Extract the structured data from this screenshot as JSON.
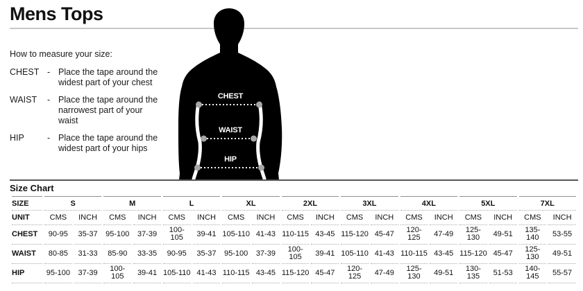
{
  "page": {
    "title": "Mens Tops"
  },
  "instructions": {
    "heading": "How to measure your size:",
    "items": [
      {
        "term": "CHEST",
        "separator": "-",
        "description": "Place the tape around the widest part of your chest"
      },
      {
        "term": "WAIST",
        "separator": "-",
        "description": "Place the tape around the narrowest part of your waist"
      },
      {
        "term": "HIP",
        "separator": "-",
        "description": "Place the tape around the widest part of your hips"
      }
    ]
  },
  "figure": {
    "silhouette_color": "#000000",
    "marker_dot_color": "#a6a6a6",
    "markers": [
      {
        "label": "CHEST"
      },
      {
        "label": "WAIST"
      },
      {
        "label": "HIP"
      }
    ]
  },
  "size_chart": {
    "heading": "Size Chart",
    "size_column_header": "SIZE",
    "unit_row_header": "UNIT",
    "sizes": [
      "S",
      "M",
      "L",
      "XL",
      "2XL",
      "3XL",
      "4XL",
      "5XL",
      "7XL"
    ],
    "units": [
      "CMS",
      "INCH"
    ],
    "rows": [
      {
        "label": "CHEST",
        "values": [
          "90-95",
          "35-37",
          "95-100",
          "37-39",
          "100-105",
          "39-41",
          "105-110",
          "41-43",
          "110-115",
          "43-45",
          "115-120",
          "45-47",
          "120-125",
          "47-49",
          "125-130",
          "49-51",
          "135-140",
          "53-55"
        ]
      },
      {
        "label": "WAIST",
        "values": [
          "80-85",
          "31-33",
          "85-90",
          "33-35",
          "90-95",
          "35-37",
          "95-100",
          "37-39",
          "100-105",
          "39-41",
          "105-110",
          "41-43",
          "110-115",
          "43-45",
          "115-120",
          "45-47",
          "125-130",
          "49-51"
        ]
      },
      {
        "label": "HIP",
        "values": [
          "95-100",
          "37-39",
          "100-105",
          "39-41",
          "105-110",
          "41-43",
          "110-115",
          "43-45",
          "115-120",
          "45-47",
          "120-125",
          "47-49",
          "125-130",
          "49-51",
          "130-135",
          "51-53",
          "140-145",
          "55-57"
        ]
      }
    ]
  }
}
